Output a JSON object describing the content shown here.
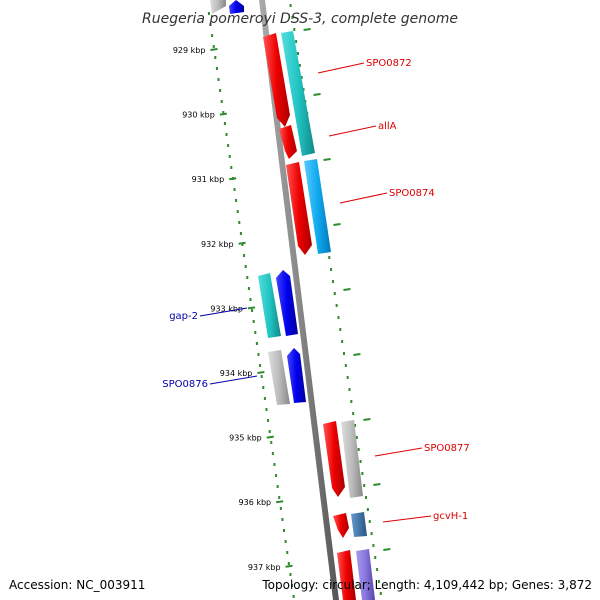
{
  "title": "Ruegeria pomeroyi DSS-3, complete genome",
  "footer": {
    "accession": "Accession: NC_003911",
    "topology": "Topology: circular; Length: 4,109,442 bp; Genes: 3,872"
  },
  "ruler": {
    "ticks": [
      {
        "label": "929 kbp"
      },
      {
        "label": "930 kbp"
      },
      {
        "label": "931 kbp"
      },
      {
        "label": "932 kbp"
      },
      {
        "label": "933 kbp"
      },
      {
        "label": "934 kbp"
      },
      {
        "label": "935 kbp"
      },
      {
        "label": "936 kbp"
      },
      {
        "label": "937 kbp"
      }
    ]
  },
  "gene_labels": [
    {
      "name": "SPO0872",
      "color": "#dd0000"
    },
    {
      "name": "allA",
      "color": "#dd0000"
    },
    {
      "name": "SPO0874",
      "color": "#dd0000"
    },
    {
      "name": "gap-2",
      "color": "#0000aa"
    },
    {
      "name": "SPO0876",
      "color": "#0000aa"
    },
    {
      "name": "SPO0877",
      "color": "#dd0000"
    },
    {
      "name": "gcvH-1",
      "color": "#dd0000"
    }
  ],
  "colors": {
    "backbone": "#8a8a8a",
    "ruler_dots": "#2e8b2e",
    "red_cds": "#ee1111",
    "cyan_cds": "#22cccc",
    "sky_cds": "#11aaee",
    "blue_cds": "#1111ee",
    "grey_cds": "#bbbbbb",
    "steel_cds": "#4477aa",
    "lavender_cds": "#8877dd"
  }
}
